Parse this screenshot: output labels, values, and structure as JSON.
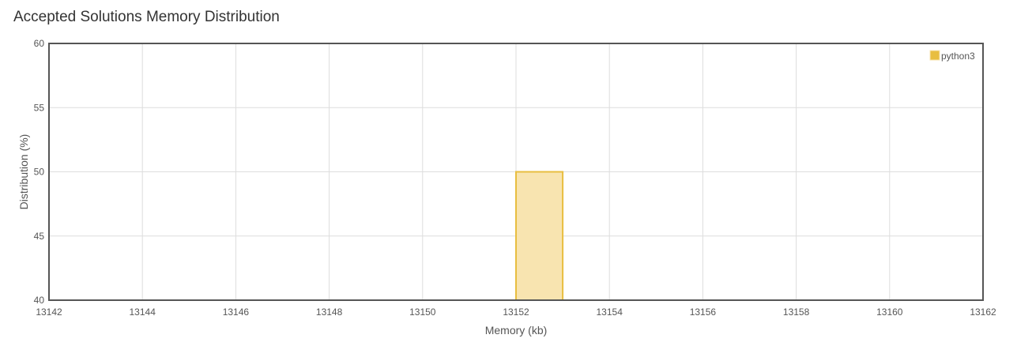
{
  "title": "Accepted Solutions Memory Distribution",
  "chart_data": {
    "type": "bar",
    "title": "Accepted Solutions Memory Distribution",
    "xlabel": "Memory (kb)",
    "ylabel": "Distribution (%)",
    "xlim": [
      13142,
      13162
    ],
    "ylim": [
      40,
      60
    ],
    "x_ticks": [
      13142,
      13144,
      13146,
      13148,
      13150,
      13152,
      13154,
      13156,
      13158,
      13160,
      13162
    ],
    "y_ticks": [
      40,
      45,
      50,
      55,
      60
    ],
    "grid": true,
    "legend_position": "top-right",
    "series": [
      {
        "name": "python3",
        "color": "#e8be40",
        "fill": "#f8e4b0",
        "bars": [
          {
            "x_start": 13152,
            "x_end": 13153,
            "value": 50
          }
        ]
      }
    ]
  }
}
